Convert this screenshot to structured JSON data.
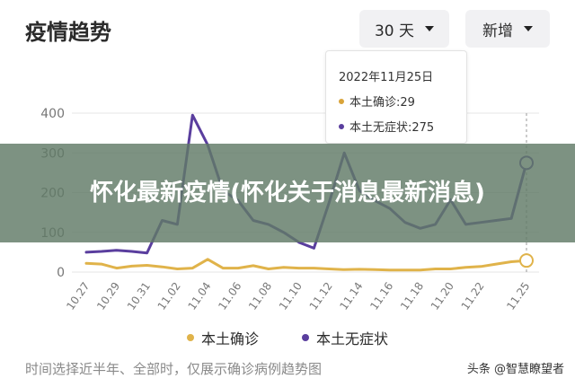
{
  "title": "疫情趋势",
  "controls": {
    "range_label": "30 天",
    "metric_label": "新增"
  },
  "banner": "怀化最新疫情(怀化关于消息最新消息)",
  "tooltip": {
    "date": "2022年11月25日",
    "rows": [
      {
        "label": "本土确诊:29",
        "color": "#d9a43a"
      },
      {
        "label": "本土无症状:275",
        "color": "#5a3e9e"
      }
    ]
  },
  "footnote": "时间选择近半年、全部时，仅展示确诊病例趋势图",
  "watermark": "头条 @智慧瞭望者",
  "colors": {
    "confirmed": "#e0b34a",
    "asymptomatic": "#5a3e9e",
    "grid": "#e5e5e5",
    "axis_text": "#777777"
  },
  "chart_data": {
    "type": "line",
    "x": [
      "10.27",
      "10.28",
      "10.29",
      "10.30",
      "10.31",
      "11.01",
      "11.02",
      "11.03",
      "11.04",
      "11.05",
      "11.06",
      "11.07",
      "11.08",
      "11.09",
      "11.10",
      "11.11",
      "11.12",
      "11.13",
      "11.14",
      "11.15",
      "11.16",
      "11.17",
      "11.18",
      "11.19",
      "11.20",
      "11.21",
      "11.22",
      "11.23",
      "11.24",
      "11.25"
    ],
    "xticks": [
      "10.27",
      "10.29",
      "10.31",
      "11.02",
      "11.04",
      "11.06",
      "11.08",
      "11.10",
      "11.12",
      "11.14",
      "11.16",
      "11.18",
      "11.20",
      "11.22",
      "11.25"
    ],
    "yticks": [
      0,
      100,
      200,
      300,
      400
    ],
    "ylim": [
      0,
      420
    ],
    "series": [
      {
        "name": "本土确诊",
        "color": "#e0b34a",
        "values": [
          22,
          20,
          10,
          15,
          17,
          13,
          8,
          10,
          32,
          10,
          10,
          16,
          8,
          12,
          10,
          10,
          8,
          6,
          7,
          6,
          5,
          5,
          5,
          8,
          8,
          12,
          14,
          20,
          26,
          29
        ]
      },
      {
        "name": "本土无症状",
        "color": "#5a3e9e",
        "values": [
          50,
          52,
          55,
          52,
          48,
          130,
          120,
          395,
          320,
          205,
          180,
          130,
          120,
          100,
          75,
          60,
          175,
          300,
          205,
          180,
          160,
          125,
          110,
          120,
          182,
          120,
          125,
          130,
          135,
          275
        ]
      }
    ],
    "highlight_index": 29
  }
}
